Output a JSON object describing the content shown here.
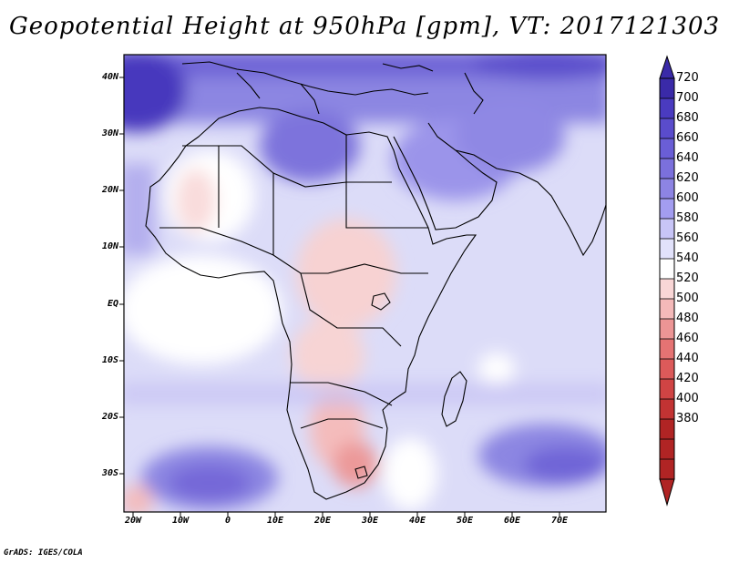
{
  "title": "Geopotential Height at 950hPa [gpm], VT: 2017121303",
  "footer": "GrADS: IGES/COLA",
  "axes": {
    "latitudes": [
      "40N",
      "30N",
      "20N",
      "10N",
      "EQ",
      "10S",
      "20S",
      "30S"
    ],
    "longitudes": [
      "20W",
      "10W",
      "0",
      "10E",
      "20E",
      "30E",
      "40E",
      "50E",
      "60E",
      "70E"
    ]
  },
  "colorbar": {
    "levels": [
      "720",
      "700",
      "680",
      "660",
      "640",
      "620",
      "600",
      "580",
      "560",
      "540",
      "520",
      "500",
      "480",
      "460",
      "440",
      "420",
      "400",
      "380"
    ],
    "colors": [
      "#3a2aa8",
      "#4a3bc0",
      "#5a4ccc",
      "#6a5ed6",
      "#7b70dc",
      "#8d84e3",
      "#a39df0",
      "#c8c5f7",
      "#e2e2fb",
      "#ffffff",
      "#f9d6d6",
      "#f4b9b9",
      "#ec9595",
      "#e57373",
      "#dc5a5a",
      "#d04444",
      "#c23333",
      "#b02424"
    ]
  }
}
